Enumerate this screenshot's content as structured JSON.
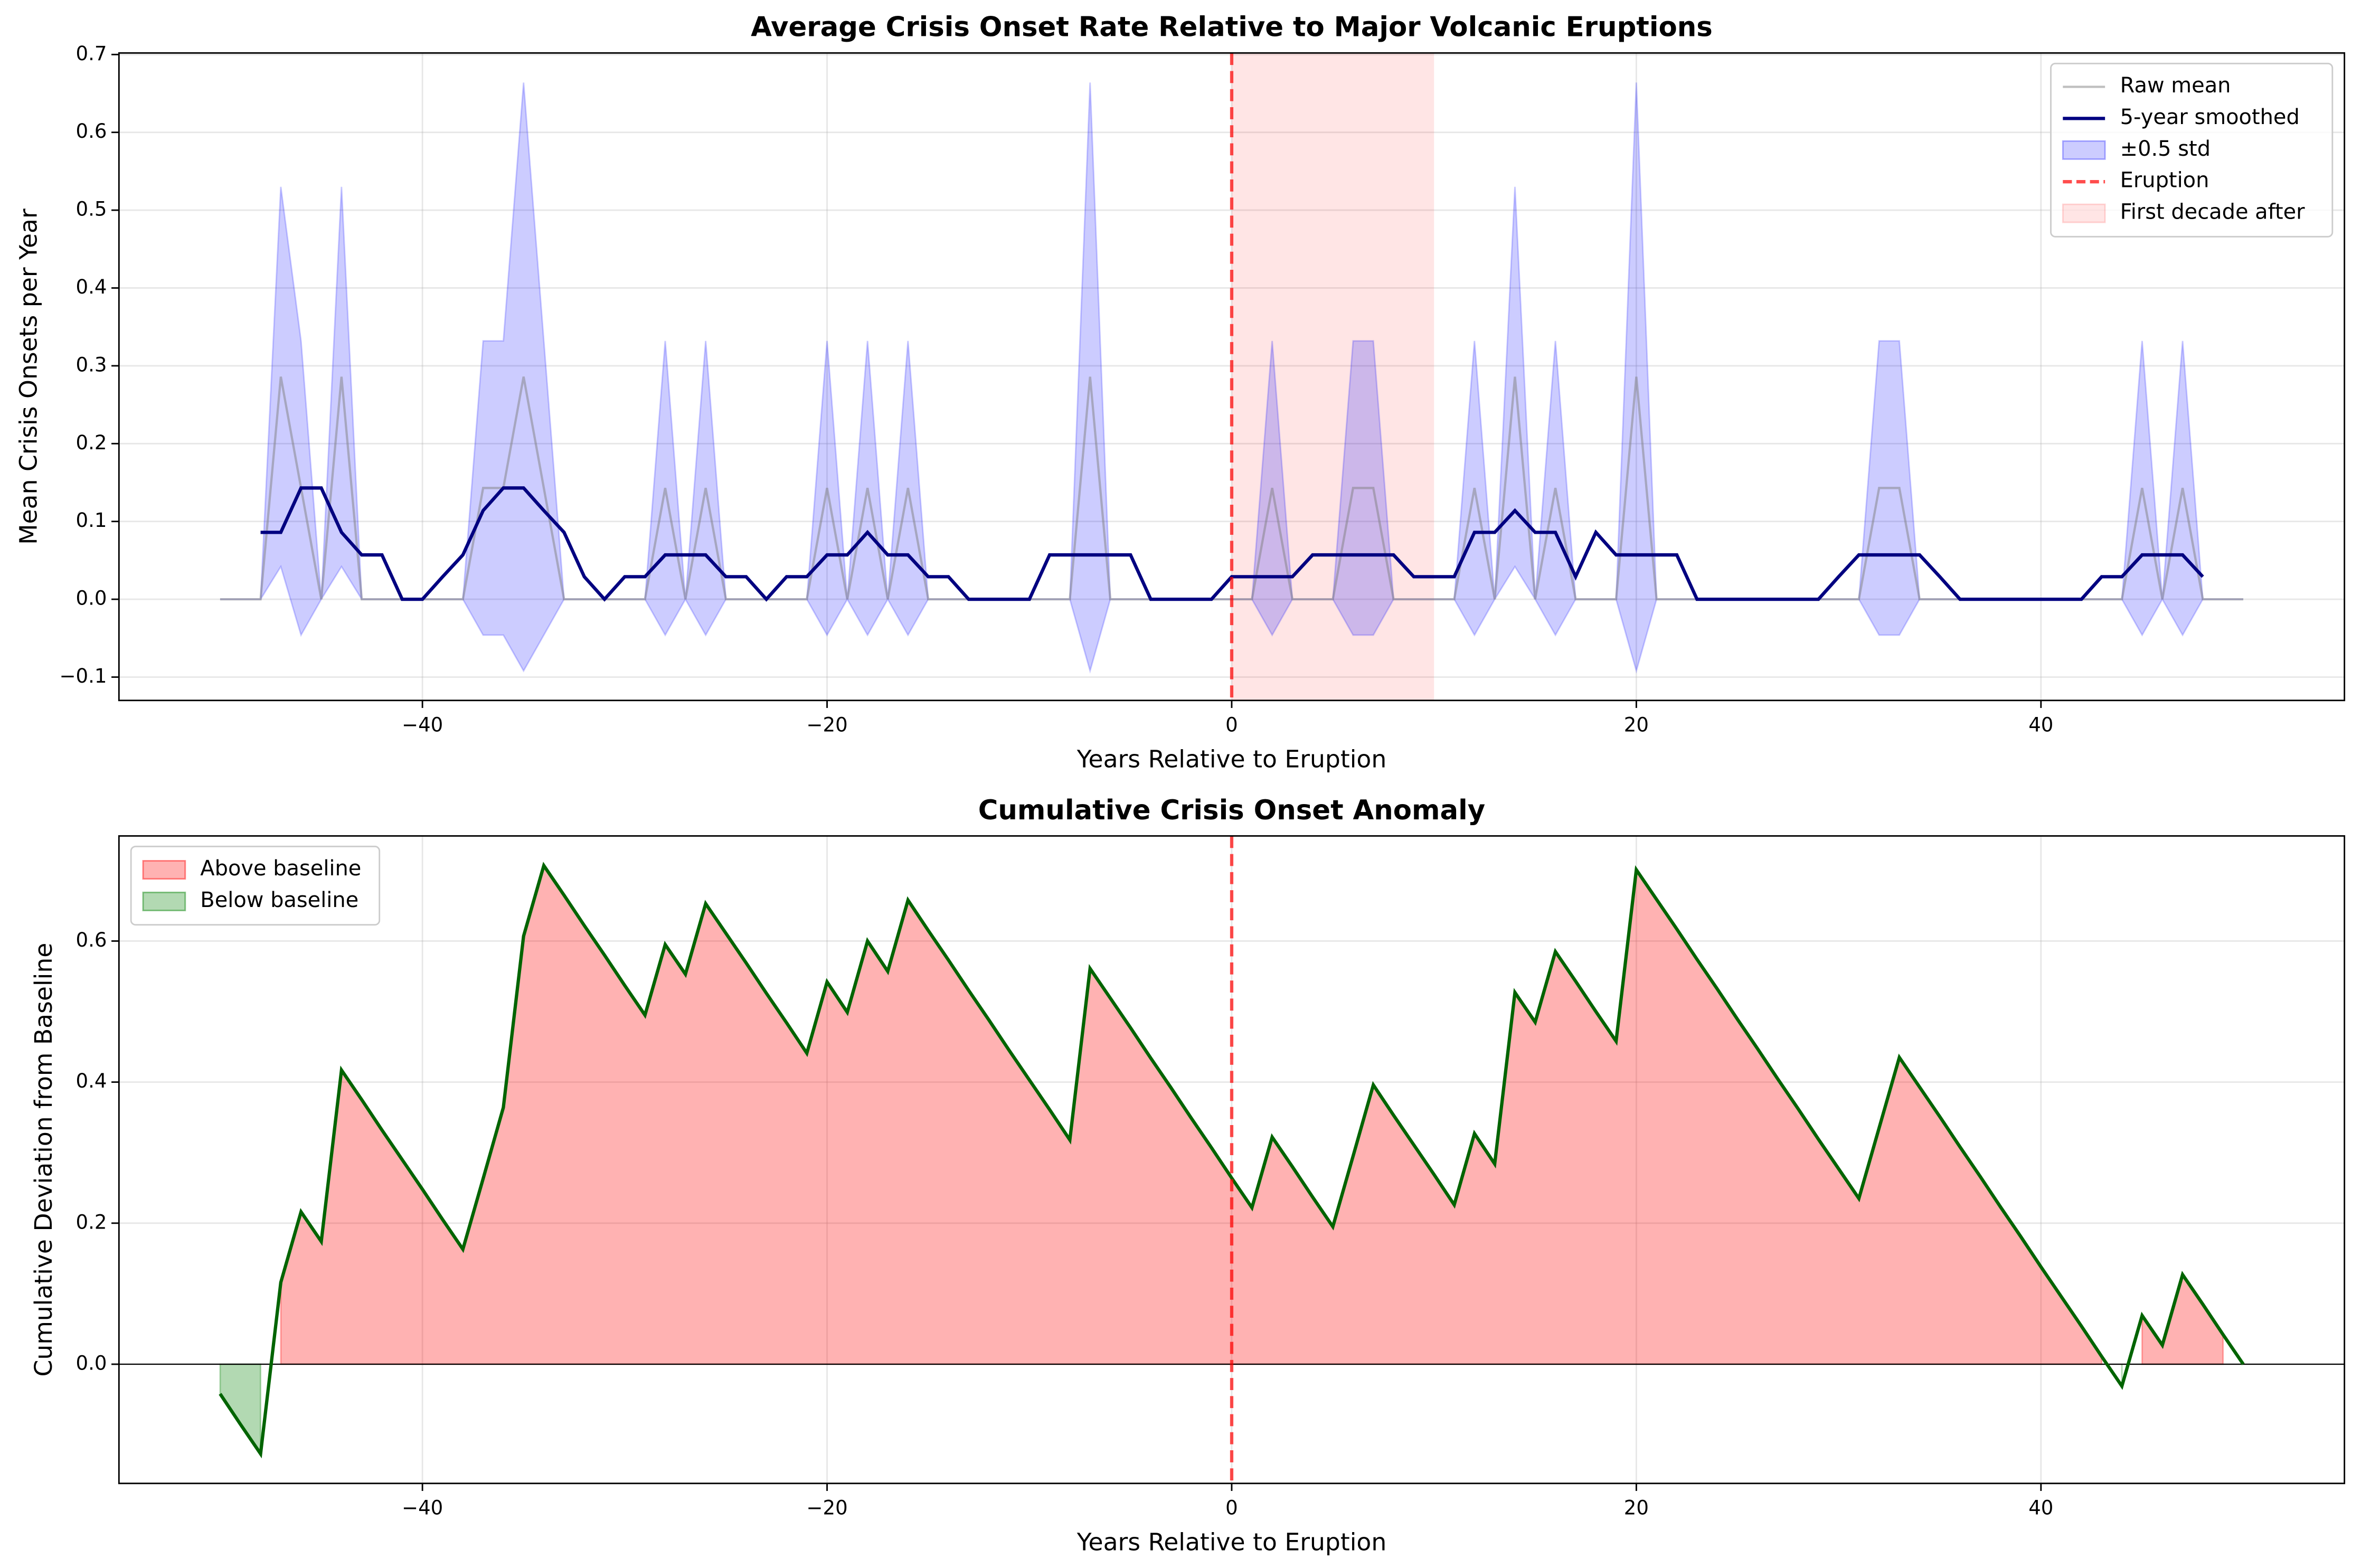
{
  "chart_data": [
    {
      "type": "line",
      "title": "Average Crisis Onset Rate Relative to Major Volcanic Eruptions",
      "xlabel": "Years Relative to Eruption",
      "ylabel": "Mean Crisis Onsets per Year",
      "x": [
        -50,
        -49,
        -48,
        -47,
        -46,
        -45,
        -44,
        -43,
        -42,
        -41,
        -40,
        -39,
        -38,
        -37,
        -36,
        -35,
        -34,
        -33,
        -32,
        -31,
        -30,
        -29,
        -28,
        -27,
        -26,
        -25,
        -24,
        -23,
        -22,
        -21,
        -20,
        -19,
        -18,
        -17,
        -16,
        -15,
        -14,
        -13,
        -12,
        -11,
        -10,
        -9,
        -8,
        -7,
        -6,
        -5,
        -4,
        -3,
        -2,
        -1,
        0,
        1,
        2,
        3,
        4,
        5,
        6,
        7,
        8,
        9,
        10,
        11,
        12,
        13,
        14,
        15,
        16,
        17,
        18,
        19,
        20,
        21,
        22,
        23,
        24,
        25,
        26,
        27,
        28,
        29,
        30,
        31,
        32,
        33,
        34,
        35,
        36,
        37,
        38,
        39,
        40,
        41,
        42,
        43,
        44,
        45,
        46,
        47,
        48,
        49,
        50
      ],
      "series": [
        {
          "name": "Raw mean",
          "color": "#808080",
          "values": [
            0,
            0,
            0,
            0.286,
            0.143,
            0,
            0.286,
            0,
            0,
            0,
            0,
            0,
            0,
            0.143,
            0.143,
            0.286,
            0.143,
            0,
            0,
            0,
            0,
            0,
            0.143,
            0,
            0.143,
            0,
            0,
            0,
            0,
            0,
            0.143,
            0,
            0.143,
            0,
            0.143,
            0,
            0,
            0,
            0,
            0,
            0,
            0,
            0,
            0.286,
            0,
            0,
            0,
            0,
            0,
            0,
            0,
            0,
            0.143,
            0,
            0,
            0,
            0.143,
            0.143,
            0,
            0,
            0,
            0,
            0.143,
            0,
            0.286,
            0,
            0.143,
            0,
            0,
            0,
            0.286,
            0,
            0,
            0,
            0,
            0,
            0,
            0,
            0,
            0,
            0,
            0,
            0.143,
            0.143,
            0,
            0,
            0,
            0,
            0,
            0,
            0,
            0,
            0,
            0,
            0,
            0.143,
            0,
            0.143,
            0,
            0,
            0
          ]
        },
        {
          "name": "5-year smoothed",
          "color": "#000080",
          "values": [
            null,
            null,
            0.086,
            0.086,
            0.143,
            0.143,
            0.086,
            0.057,
            0.057,
            0,
            0,
            0.029,
            0.057,
            0.114,
            0.143,
            0.143,
            0.114,
            0.086,
            0.029,
            0,
            0.029,
            0.029,
            0.057,
            0.057,
            0.057,
            0.029,
            0.029,
            0,
            0.029,
            0.029,
            0.057,
            0.057,
            0.086,
            0.057,
            0.057,
            0.029,
            0.029,
            0,
            0,
            0,
            0,
            0.057,
            0.057,
            0.057,
            0.057,
            0.057,
            0,
            0,
            0,
            0,
            0.029,
            0.029,
            0.029,
            0.029,
            0.057,
            0.057,
            0.057,
            0.057,
            0.057,
            0.029,
            0.029,
            0.029,
            0.086,
            0.086,
            0.114,
            0.086,
            0.086,
            0.029,
            0.086,
            0.057,
            0.057,
            0.057,
            0.057,
            0,
            0,
            0,
            0,
            0,
            0,
            0,
            0.029,
            0.057,
            0.057,
            0.057,
            0.057,
            0.029,
            0,
            0,
            0,
            0,
            0,
            0,
            0,
            0.029,
            0.029,
            0.057,
            0.057,
            0.057,
            0.029,
            null,
            null
          ]
        }
      ],
      "band": {
        "name": "±0.5 std",
        "color": "#0000ff",
        "upper": [
          0,
          0,
          0,
          0.53,
          0.332,
          0,
          0.53,
          0,
          0,
          0,
          0,
          0,
          0,
          0.332,
          0.332,
          0.664,
          0.332,
          0,
          0,
          0,
          0,
          0,
          0.332,
          0,
          0.332,
          0,
          0,
          0,
          0,
          0,
          0.332,
          0,
          0.332,
          0,
          0.332,
          0,
          0,
          0,
          0,
          0,
          0,
          0,
          0,
          0.664,
          0,
          0,
          0,
          0,
          0,
          0,
          0,
          0,
          0.332,
          0,
          0,
          0,
          0.332,
          0.332,
          0,
          0,
          0,
          0,
          0.332,
          0,
          0.53,
          0,
          0.332,
          0,
          0,
          0,
          0.664,
          0,
          0,
          0,
          0,
          0,
          0,
          0,
          0,
          0,
          0,
          0,
          0.332,
          0.332,
          0,
          0,
          0,
          0,
          0,
          0,
          0,
          0,
          0,
          0,
          0,
          0.332,
          0,
          0.332,
          0,
          0,
          0
        ],
        "lower": [
          0,
          0,
          0,
          0.042,
          -0.046,
          0,
          0.042,
          0,
          0,
          0,
          0,
          0,
          0,
          -0.046,
          -0.046,
          -0.092,
          -0.046,
          0,
          0,
          0,
          0,
          0,
          -0.046,
          0,
          -0.046,
          0,
          0,
          0,
          0,
          0,
          -0.046,
          0,
          -0.046,
          0,
          -0.046,
          0,
          0,
          0,
          0,
          0,
          0,
          0,
          0,
          -0.092,
          0,
          0,
          0,
          0,
          0,
          0,
          0,
          0,
          -0.046,
          0,
          0,
          0,
          -0.046,
          -0.046,
          0,
          0,
          0,
          0,
          -0.046,
          0,
          0.042,
          0,
          -0.046,
          0,
          0,
          0,
          -0.092,
          0,
          0,
          0,
          0,
          0,
          0,
          0,
          0,
          0,
          0,
          0,
          -0.046,
          -0.046,
          0,
          0,
          0,
          0,
          0,
          0,
          0,
          0,
          0,
          0,
          0,
          -0.046,
          0,
          -0.046,
          0,
          0,
          0
        ]
      },
      "vline": {
        "name": "Eruption",
        "x": 0,
        "color": "#ff0000"
      },
      "span": {
        "name": "First decade after",
        "x": [
          0,
          10
        ],
        "color": "#ff0000"
      },
      "xlim": [
        -55,
        55
      ],
      "ylim": [
        -0.13,
        0.702
      ],
      "xticks": [
        {
          "value": -40,
          "label": "−40"
        },
        {
          "value": -20,
          "label": "−20"
        },
        0,
        20,
        40
      ],
      "yticks": [
        {
          "value": -0.1,
          "label": "−0.1"
        },
        {
          "value": 0,
          "label": "0.0"
        },
        0.1,
        0.2,
        0.3,
        0.4,
        0.5,
        0.6,
        0.7
      ],
      "grid": true,
      "legend": "upper right"
    },
    {
      "type": "area",
      "title": "Cumulative Crisis Onset Anomaly",
      "xlabel": "Years Relative to Eruption",
      "ylabel": "Cumulative Deviation from Baseline",
      "x": [
        -50,
        -49,
        -48,
        -47,
        -46,
        -45,
        -44,
        -43,
        -42,
        -41,
        -40,
        -39,
        -38,
        -37,
        -36,
        -35,
        -34,
        -33,
        -32,
        -31,
        -30,
        -29,
        -28,
        -27,
        -26,
        -25,
        -24,
        -23,
        -22,
        -21,
        -20,
        -19,
        -18,
        -17,
        -16,
        -15,
        -14,
        -13,
        -12,
        -11,
        -10,
        -9,
        -8,
        -7,
        -6,
        -5,
        -4,
        -3,
        -2,
        -1,
        0,
        1,
        2,
        3,
        4,
        5,
        6,
        7,
        8,
        9,
        10,
        11,
        12,
        13,
        14,
        15,
        16,
        17,
        18,
        19,
        20,
        21,
        22,
        23,
        24,
        25,
        26,
        27,
        28,
        29,
        30,
        31,
        32,
        33,
        34,
        35,
        36,
        37,
        38,
        39,
        40,
        41,
        42,
        43,
        44,
        45,
        46,
        47,
        48,
        49,
        50
      ],
      "values": [
        -0.042,
        -0.085,
        -0.127,
        0.116,
        0.216,
        0.174,
        0.417,
        0.375,
        0.332,
        0.29,
        0.248,
        0.205,
        0.163,
        0.263,
        0.364,
        0.607,
        0.707,
        0.665,
        0.622,
        0.58,
        0.537,
        0.495,
        0.595,
        0.553,
        0.653,
        0.611,
        0.569,
        0.526,
        0.484,
        0.441,
        0.542,
        0.499,
        0.6,
        0.557,
        0.658,
        0.615,
        0.573,
        0.53,
        0.488,
        0.445,
        0.403,
        0.361,
        0.318,
        0.561,
        0.519,
        0.477,
        0.434,
        0.392,
        0.349,
        0.307,
        0.264,
        0.222,
        0.322,
        0.28,
        0.237,
        0.195,
        0.295,
        0.396,
        0.353,
        0.311,
        0.269,
        0.226,
        0.327,
        0.284,
        0.527,
        0.485,
        0.585,
        0.543,
        0.5,
        0.458,
        0.701,
        0.659,
        0.617,
        0.574,
        0.532,
        0.489,
        0.447,
        0.404,
        0.362,
        0.319,
        0.277,
        0.235,
        0.335,
        0.435,
        0.393,
        0.351,
        0.308,
        0.266,
        0.223,
        0.181,
        0.138,
        0.096,
        0.054,
        0.011,
        -0.031,
        0.069,
        0.027,
        0.127,
        0.085,
        0.042,
        0
      ],
      "color": "#006400",
      "fills": [
        {
          "name": "Above baseline",
          "color": "#ff0000"
        },
        {
          "name": "Below baseline",
          "color": "#008000"
        }
      ],
      "baseline": 0,
      "vline": {
        "x": 0,
        "color": "#ff0000"
      },
      "xlim": [
        -55,
        55
      ],
      "ylim": [
        -0.169,
        0.749
      ],
      "xticks": [
        {
          "value": -40,
          "label": "−40"
        },
        {
          "value": -20,
          "label": "−20"
        },
        0,
        20,
        40
      ],
      "yticks": [
        {
          "value": 0,
          "label": "0.0"
        },
        0.2,
        0.4,
        0.6
      ],
      "grid": true,
      "legend": "upper left"
    }
  ]
}
